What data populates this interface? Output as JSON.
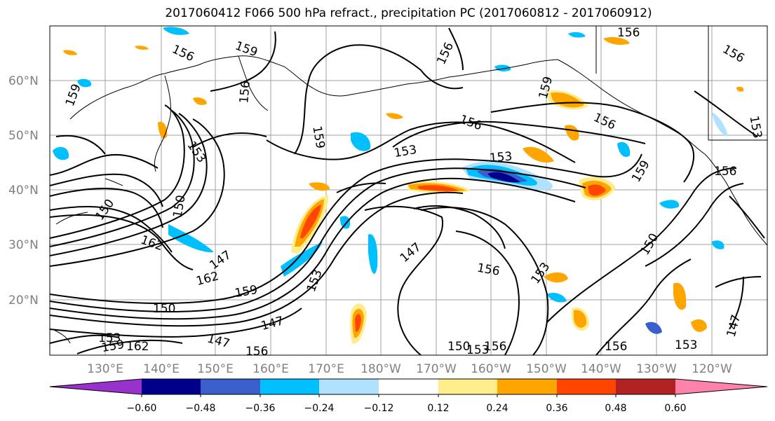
{
  "title": "2017060412 F066 500 hPa refract., precipitation PC (2017060812 - 2017060912)",
  "lat_labels": [
    "60°N",
    "50°N",
    "40°N",
    "30°N",
    "20°N"
  ],
  "lon_labels": [
    "130°E",
    "140°E",
    "150°E",
    "160°E",
    "170°E",
    "180°W",
    "170°W",
    "160°W",
    "150°W",
    "140°W",
    "130°W",
    "120°W"
  ],
  "colorbar": {
    "ticks": [
      "−0.60",
      "−0.48",
      "−0.36",
      "−0.24",
      "−0.12",
      "0.12",
      "0.24",
      "0.36",
      "0.48",
      "0.60"
    ],
    "colors": [
      "#9932CC",
      "#00008B",
      "#3A5FCD",
      "#00BFFF",
      "#B0E2FF",
      "#FFFFFF",
      "#FFEC8B",
      "#FFA500",
      "#FF4500",
      "#B22222",
      "#FF82AB"
    ]
  },
  "contour_labels": [
    "156",
    "159",
    "156",
    "156",
    "159",
    "156",
    "159",
    "159",
    "153",
    "156",
    "150",
    "153",
    "156",
    "153",
    "162",
    "147",
    "162",
    "159",
    "150",
    "153",
    "147",
    "147",
    "159",
    "162",
    "156",
    "153",
    "156",
    "147",
    "150",
    "153",
    "156",
    "150",
    "153",
    "156",
    "153",
    "156",
    "159",
    "156",
    "150",
    "153",
    "147"
  ]
}
